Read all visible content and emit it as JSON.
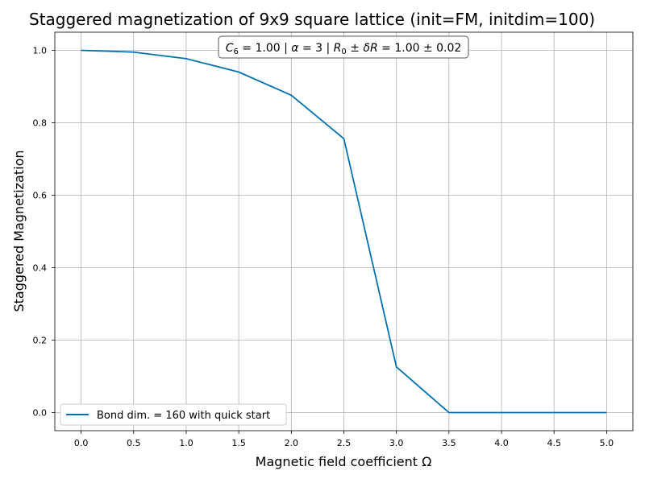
{
  "chart_data": {
    "type": "line",
    "title": "Staggered magnetization of 9x9 square lattice (init=FM, initdim=100)",
    "xlabel": "Magnetic field coefficient Ω",
    "ylabel": "Staggered Magnetization",
    "xlim": [
      -0.25,
      5.25
    ],
    "ylim": [
      -0.05,
      1.05
    ],
    "x_ticks": [
      "0.0",
      "0.5",
      "1.0",
      "1.5",
      "2.0",
      "2.5",
      "3.0",
      "3.5",
      "4.0",
      "4.5",
      "5.0"
    ],
    "y_ticks": [
      "0.0",
      "0.2",
      "0.4",
      "0.6",
      "0.8",
      "1.0"
    ],
    "grid": true,
    "legend_position": "lower-left",
    "annotation": {
      "c6": "1.00",
      "alpha": "3",
      "r0": "1.00",
      "dr": "0.02"
    },
    "series": [
      {
        "name": "Bond dim. = 160 with quick start",
        "color": "#0072B2",
        "x": [
          0.0,
          0.5,
          1.0,
          1.5,
          2.0,
          2.5,
          3.0,
          3.5,
          4.0,
          4.5,
          5.0
        ],
        "y": [
          1.0,
          0.995,
          0.977,
          0.94,
          0.876,
          0.756,
          0.126,
          0.0,
          0.0,
          0.0,
          0.0
        ]
      }
    ]
  }
}
